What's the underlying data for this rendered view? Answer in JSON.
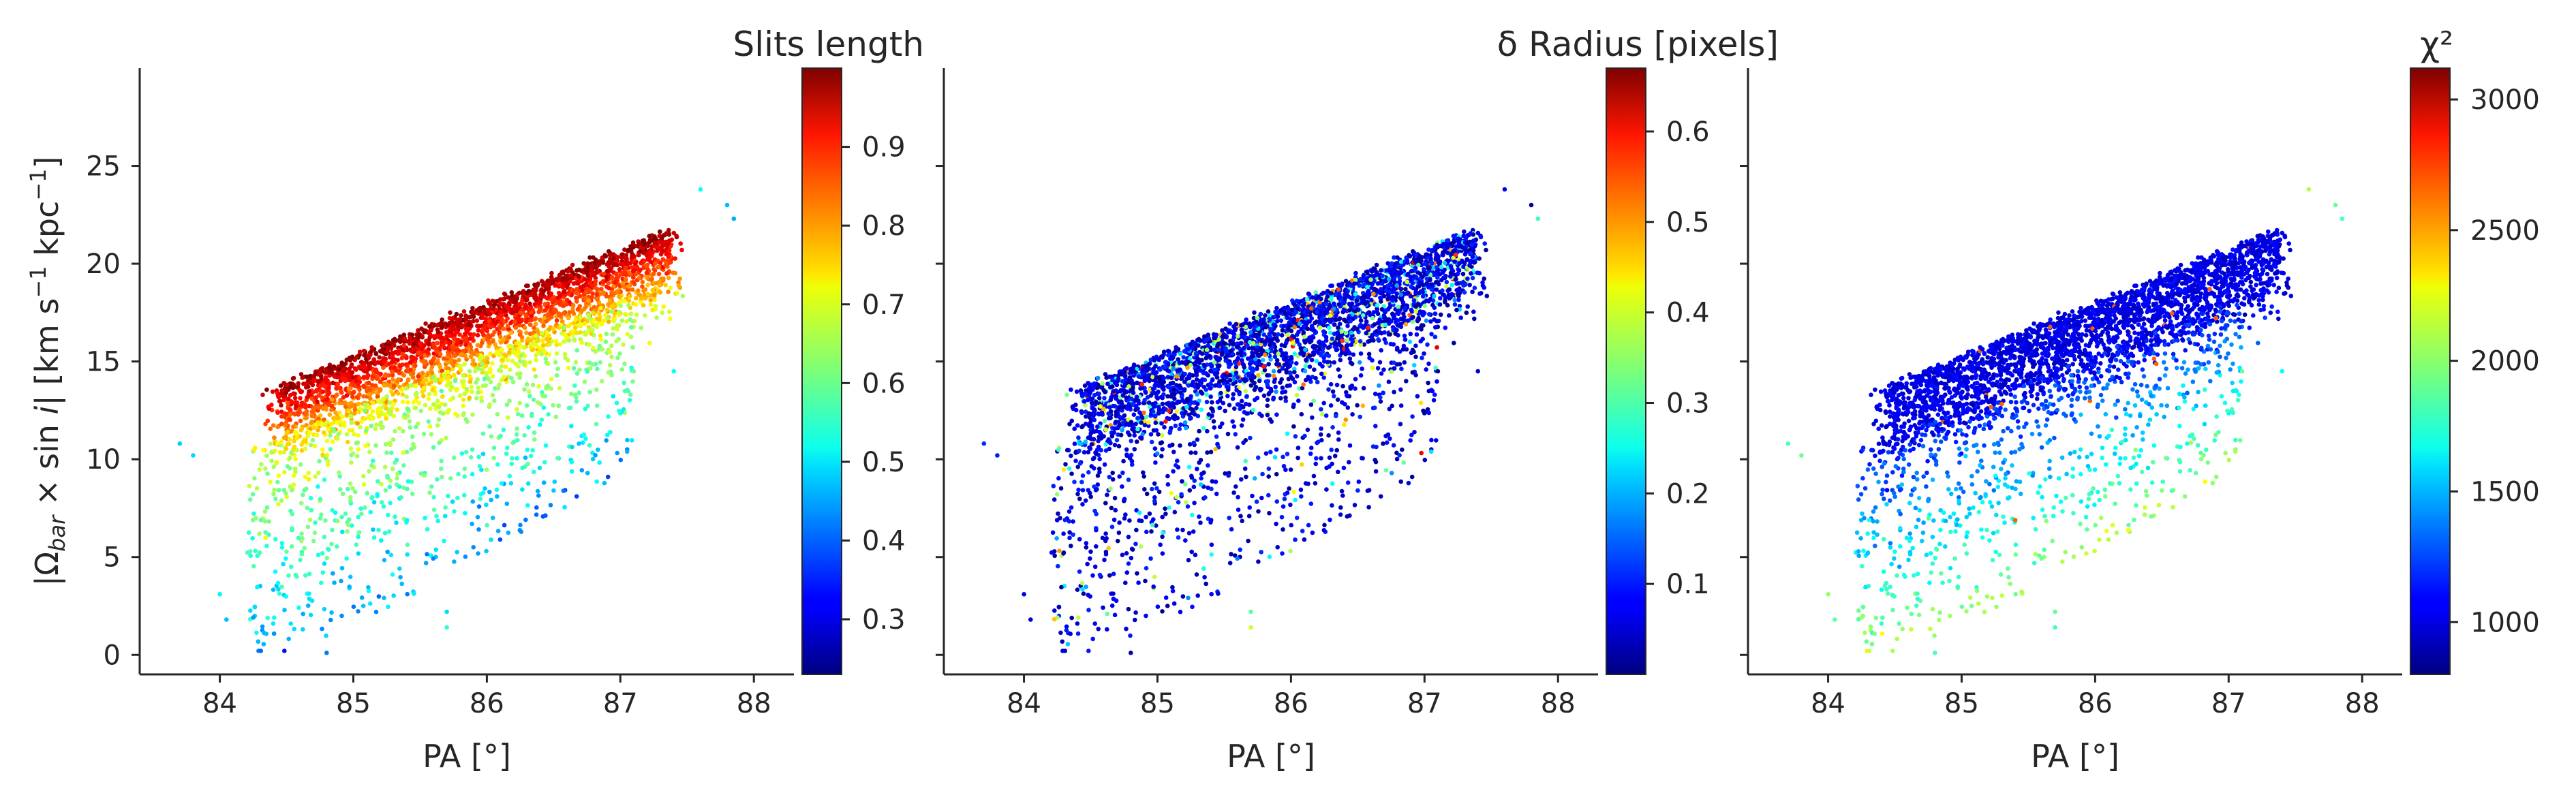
{
  "chart_data": [
    {
      "type": "scatter",
      "xlabel": "PA [°]",
      "ylabel": "|Ω_bar × sin i|  [km s⁻¹ kpc⁻¹]",
      "ylabel_parts": [
        "|Ω",
        "bar",
        " × sin ",
        "i",
        "|   [km s",
        "−1",
        " kpc",
        "−1",
        "]"
      ],
      "xlim": [
        83.4,
        88.3
      ],
      "ylim": [
        -1.0,
        30.0
      ],
      "xticks": [
        84,
        85,
        86,
        87,
        88
      ],
      "yticks": [
        0,
        5,
        10,
        15,
        20,
        25
      ],
      "grid": false,
      "colorbar": {
        "title": "Slits length",
        "cmap": "jet",
        "vmin": 0.23,
        "vmax": 1.0,
        "ticks": [
          0.3,
          0.4,
          0.5,
          0.6,
          0.7,
          0.8,
          0.9
        ]
      },
      "color_trend": "upper band near 0.9-1.0 (red); lower scattered points 0.3-0.7"
    },
    {
      "type": "scatter",
      "xlabel": "PA [°]",
      "ylabel": "",
      "xlim": [
        83.4,
        88.3
      ],
      "ylim": [
        -1.0,
        30.0
      ],
      "xticks": [
        84,
        85,
        86,
        87,
        88
      ],
      "yticks": [],
      "grid": false,
      "colorbar": {
        "title": "δ Radius [pixels]",
        "cmap": "jet",
        "vmin": 0.0,
        "vmax": 0.67,
        "ticks": [
          0.1,
          0.2,
          0.3,
          0.4,
          0.5,
          0.6
        ]
      },
      "color_trend": "mostly 0.0-0.15 (blue); scattered cyan/yellow points along upper edge"
    },
    {
      "type": "scatter",
      "xlabel": "PA [°]",
      "ylabel": "",
      "xlim": [
        83.4,
        88.3
      ],
      "ylim": [
        -1.0,
        30.0
      ],
      "xticks": [
        84,
        85,
        86,
        87,
        88
      ],
      "yticks": [],
      "grid": false,
      "colorbar": {
        "title": "χ²",
        "cmap": "jet",
        "vmin": 800,
        "vmax": 3120,
        "ticks": [
          1000,
          1500,
          2000,
          2500,
          3000
        ]
      },
      "color_trend": "upper band ~900-1100 (dark blue); lower points increase to ~2000, a few ~2600"
    }
  ],
  "scatter_cloud": {
    "band": {
      "pa_range": [
        84.4,
        87.4
      ],
      "y_at_pa_low": 13.0,
      "y_at_pa_high": 21.2,
      "width": 3.4
    },
    "tail": {
      "pa_range": [
        84.0,
        87.3
      ],
      "y_min": 0.0
    },
    "outliers": [
      {
        "pa": 83.7,
        "y": 10.8
      },
      {
        "pa": 83.8,
        "y": 10.2
      },
      {
        "pa": 84.0,
        "y": 3.1
      },
      {
        "pa": 84.05,
        "y": 1.8
      },
      {
        "pa": 84.4,
        "y": 1.6
      },
      {
        "pa": 84.8,
        "y": 0.1
      },
      {
        "pa": 85.7,
        "y": 1.4
      },
      {
        "pa": 85.7,
        "y": 2.2
      },
      {
        "pa": 87.6,
        "y": 23.8
      },
      {
        "pa": 87.8,
        "y": 23.0
      },
      {
        "pa": 87.85,
        "y": 22.3
      },
      {
        "pa": 87.4,
        "y": 14.5
      },
      {
        "pa": 87.1,
        "y": 14.5
      }
    ]
  }
}
